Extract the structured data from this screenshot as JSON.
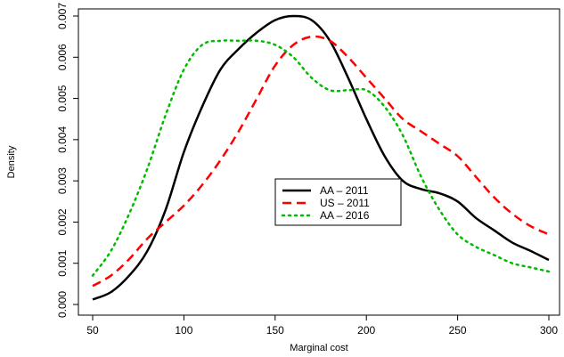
{
  "chart_data": {
    "type": "line",
    "title": "",
    "xlabel": "Marginal cost",
    "ylabel": "Density",
    "xlim": [
      50,
      300
    ],
    "ylim": [
      0,
      0.007
    ],
    "xticks": [
      50,
      100,
      150,
      200,
      250,
      300
    ],
    "yticks": [
      "0.000",
      "0.001",
      "0.002",
      "0.003",
      "0.004",
      "0.005",
      "0.006",
      "0.007"
    ],
    "grid": false,
    "legend_position": "center-right",
    "series": [
      {
        "name": "AA – 2011",
        "color": "#000000",
        "line_style": "solid",
        "x": [
          50,
          60,
          70,
          80,
          90,
          100,
          110,
          120,
          130,
          140,
          150,
          160,
          170,
          180,
          190,
          200,
          210,
          220,
          230,
          240,
          250,
          260,
          270,
          280,
          290,
          300
        ],
        "y": [
          0.00012,
          0.0003,
          0.0007,
          0.0013,
          0.0023,
          0.0037,
          0.0048,
          0.0057,
          0.0062,
          0.0066,
          0.0069,
          0.007,
          0.0069,
          0.0064,
          0.0055,
          0.0045,
          0.0036,
          0.003,
          0.0028,
          0.0027,
          0.0025,
          0.0021,
          0.0018,
          0.0015,
          0.0013,
          0.00108
        ]
      },
      {
        "name": "US – 2011",
        "color": "#ff0000",
        "line_style": "dashed",
        "x": [
          50,
          60,
          70,
          80,
          90,
          100,
          110,
          120,
          130,
          140,
          150,
          160,
          170,
          180,
          190,
          200,
          210,
          220,
          230,
          240,
          250,
          260,
          270,
          280,
          290,
          300
        ],
        "y": [
          0.00045,
          0.0007,
          0.0011,
          0.0016,
          0.002,
          0.0024,
          0.0029,
          0.0035,
          0.0042,
          0.005,
          0.0058,
          0.0063,
          0.0065,
          0.0064,
          0.006,
          0.0055,
          0.005,
          0.0045,
          0.0042,
          0.0039,
          0.0036,
          0.0031,
          0.0026,
          0.0022,
          0.0019,
          0.0017
        ]
      },
      {
        "name": "AA – 2016",
        "color": "#00bb00",
        "line_style": "dotted",
        "x": [
          50,
          60,
          70,
          80,
          90,
          100,
          110,
          120,
          130,
          140,
          150,
          160,
          170,
          180,
          190,
          200,
          210,
          220,
          230,
          240,
          250,
          260,
          270,
          280,
          290,
          300
        ],
        "y": [
          0.0007,
          0.0013,
          0.0022,
          0.0033,
          0.0046,
          0.0057,
          0.0063,
          0.0064,
          0.0064,
          0.0064,
          0.0063,
          0.006,
          0.0055,
          0.0052,
          0.0052,
          0.0052,
          0.0048,
          0.0041,
          0.0031,
          0.0023,
          0.0017,
          0.0014,
          0.0012,
          0.001,
          0.0009,
          0.0008
        ]
      }
    ]
  }
}
